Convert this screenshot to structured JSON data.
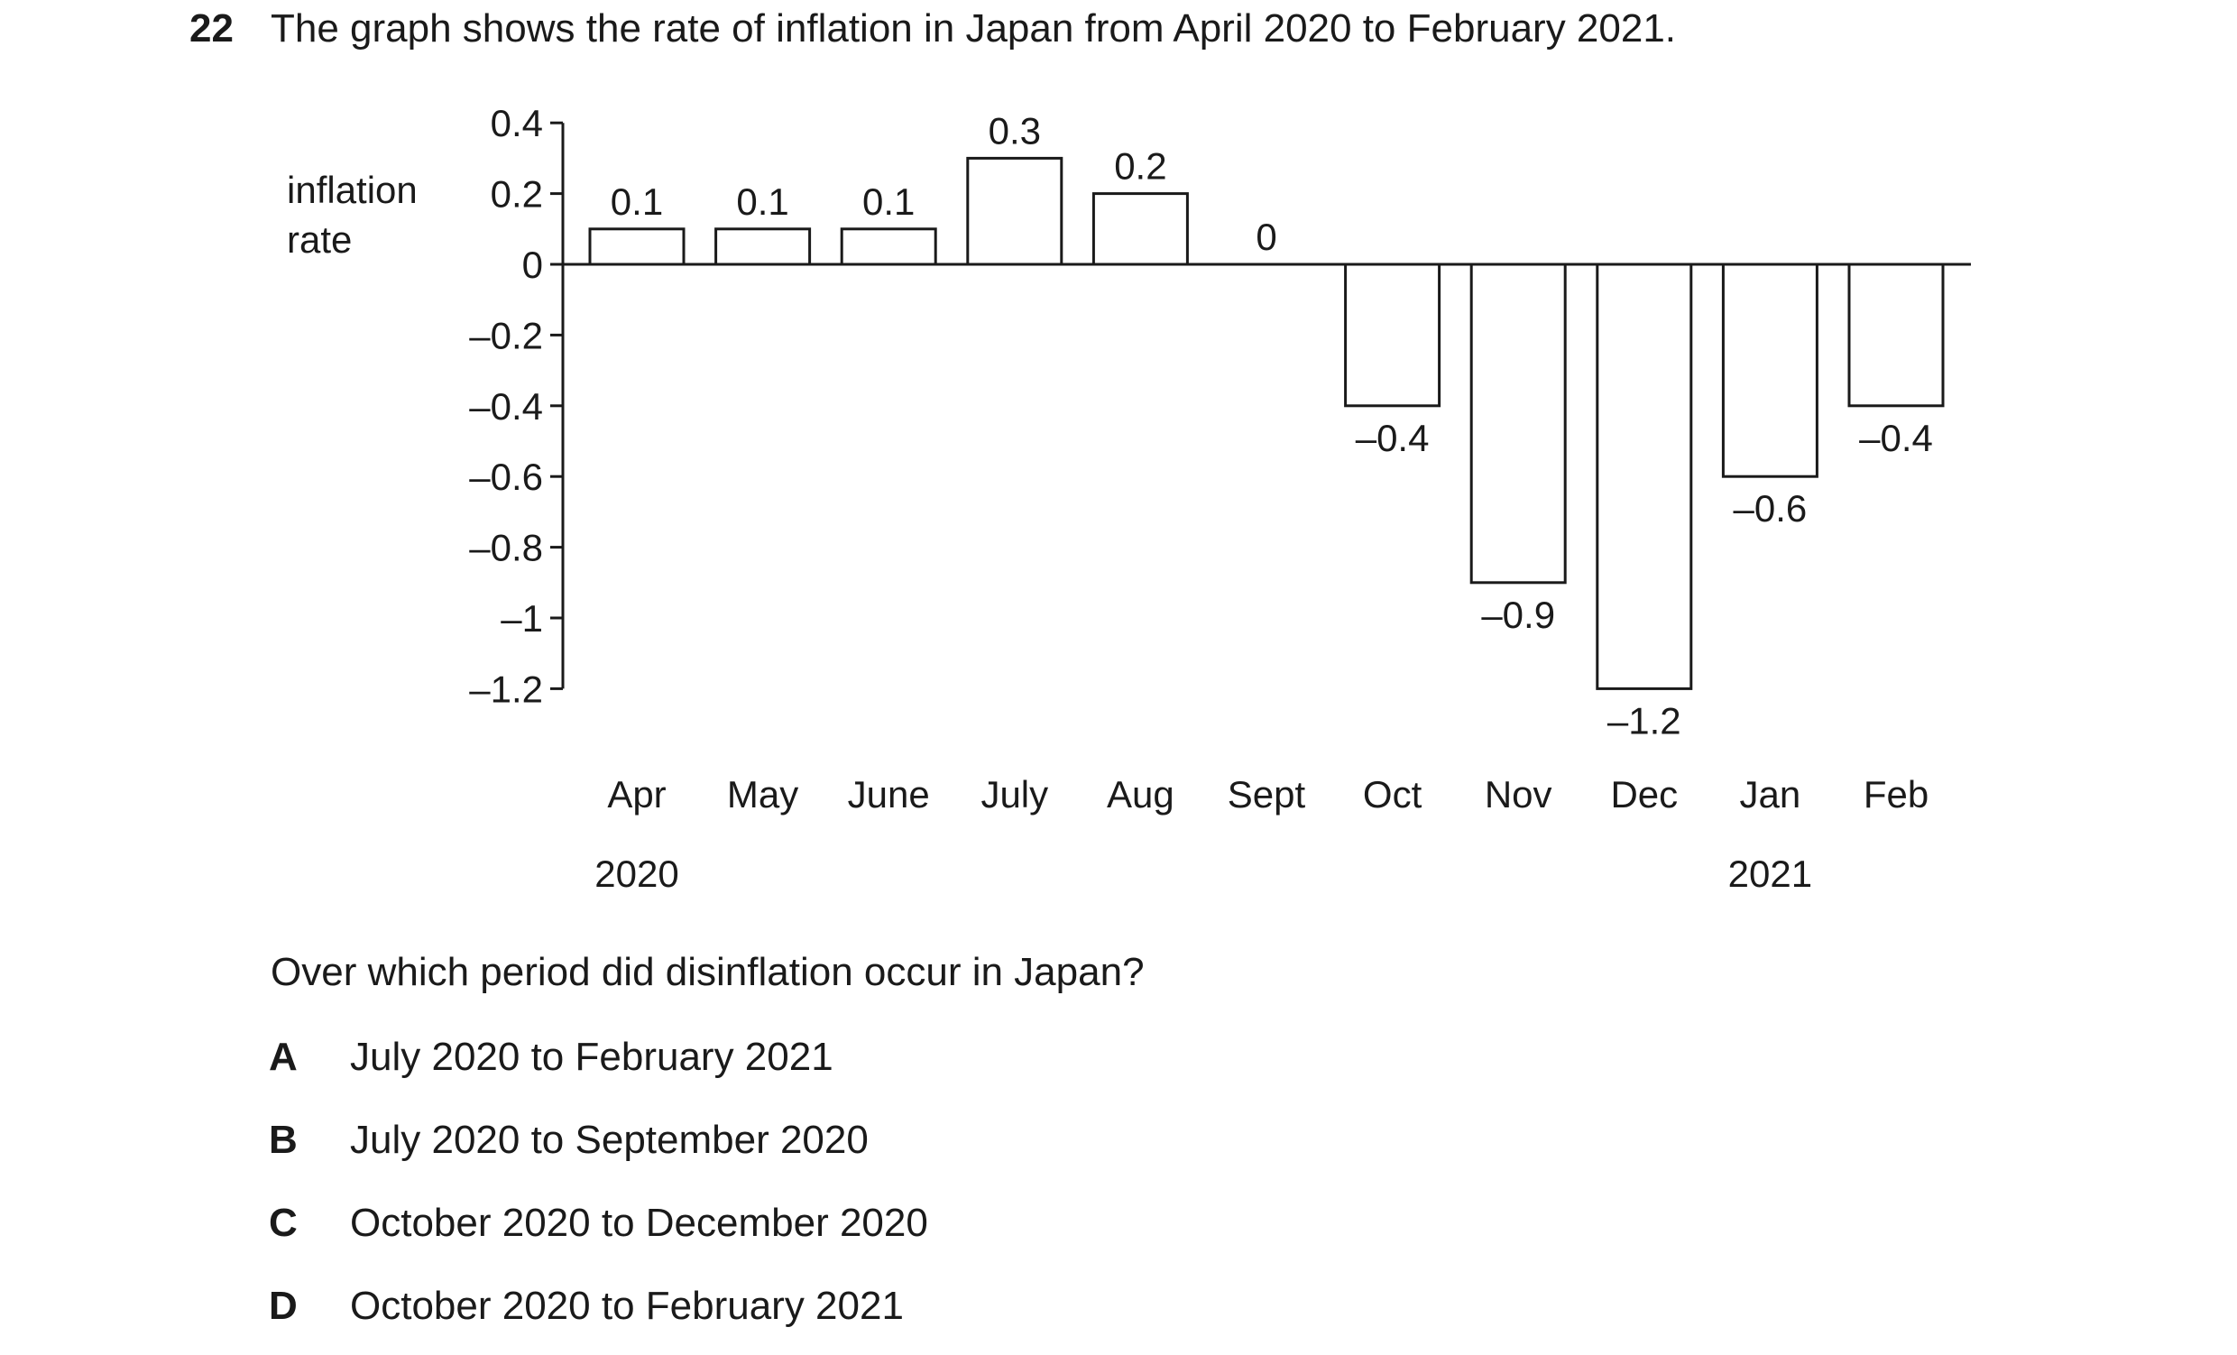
{
  "question": {
    "number": "22",
    "text": "The graph shows the rate of inflation in Japan from April 2020 to February 2021.",
    "prompt": "Over which period did disinflation occur in Japan?",
    "options": [
      {
        "letter": "A",
        "text": "July 2020 to February 2021"
      },
      {
        "letter": "B",
        "text": "July 2020 to September 2020"
      },
      {
        "letter": "C",
        "text": "October 2020 to December 2020"
      },
      {
        "letter": "D",
        "text": "October 2020 to February 2021"
      }
    ]
  },
  "chart_data": {
    "type": "bar",
    "ylabel": "inflation rate",
    "ylabel_lines": [
      "inflation",
      "rate"
    ],
    "categories": [
      "Apr",
      "May",
      "June",
      "July",
      "Aug",
      "Sept",
      "Oct",
      "Nov",
      "Dec",
      "Jan",
      "Feb"
    ],
    "values": [
      0.1,
      0.1,
      0.1,
      0.3,
      0.2,
      0,
      -0.4,
      -0.9,
      -1.2,
      -0.6,
      -0.4
    ],
    "data_labels": [
      "0.1",
      "0.1",
      "0.1",
      "0.3",
      "0.2",
      "0",
      "–0.4",
      "–0.9",
      "–1.2",
      "–0.6",
      "–0.4"
    ],
    "year_labels": [
      {
        "category": "Apr",
        "text": "2020"
      },
      {
        "category": "Jan",
        "text": "2021"
      }
    ],
    "yticks": [
      0.4,
      0.2,
      0,
      -0.2,
      -0.4,
      -0.6,
      -0.8,
      -1,
      -1.2
    ],
    "ytick_labels": [
      "0.4",
      "0.2",
      "0",
      "–0.2",
      "–0.4",
      "–0.6",
      "–0.8",
      "–1",
      "–1.2"
    ],
    "ylim": [
      -1.2,
      0.4
    ],
    "grid": false,
    "bar_fill": "#ffffff",
    "bar_stroke": "#1a1a1a"
  }
}
